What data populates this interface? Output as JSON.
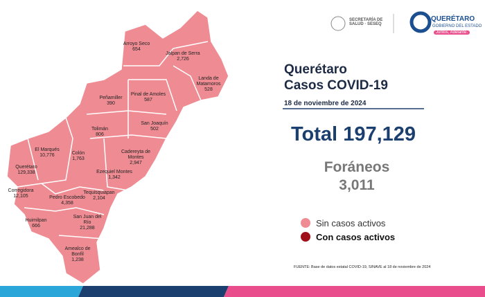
{
  "header": {
    "ministry": "SECRETARÍA DE SALUD · SESEQ",
    "state": "QUERÉTARO",
    "government": "GOBIERNO DEL ESTADO",
    "slogan": "Juntos, Adelante."
  },
  "title": {
    "line1": "Querétaro",
    "line2": "Casos COVID-19",
    "date": "18 de noviembre de 2024"
  },
  "total": {
    "label": "Total",
    "value": "197,129"
  },
  "foreign": {
    "label": "Foráneos",
    "value": "3,011"
  },
  "legend": [
    {
      "label": "Sin casos activos",
      "color": "#ef8c93"
    },
    {
      "label": "Con casos activos",
      "color": "#a0101a"
    }
  ],
  "source": "FUENTE: Base de datos estatal COVID-19, SINAVE al 18 de noviembre de 2024",
  "municipalities": [
    {
      "name": "Arroyo Seco",
      "value": "654"
    },
    {
      "name": "Jalpan de Serra",
      "value": "2,726"
    },
    {
      "name": "Landa de Matamoros",
      "value": "528"
    },
    {
      "name": "Pinal de Amoles",
      "value": "587"
    },
    {
      "name": "Peñamiller",
      "value": "390"
    },
    {
      "name": "San Joaquín",
      "value": "502"
    },
    {
      "name": "Tolimán",
      "value": "806"
    },
    {
      "name": "Cadereyta de Montes",
      "value": "2,947"
    },
    {
      "name": "Colón",
      "value": "1,763"
    },
    {
      "name": "El Marqués",
      "value": "10,776"
    },
    {
      "name": "Querétaro",
      "value": "129,338"
    },
    {
      "name": "Ezequiel Montes",
      "value": "1,342"
    },
    {
      "name": "Tequisquiapan",
      "value": "2,104"
    },
    {
      "name": "Corregidora",
      "value": "12,105"
    },
    {
      "name": "Pedro Escobedo",
      "value": "4,358"
    },
    {
      "name": "Huimilpan",
      "value": "666"
    },
    {
      "name": "San Juan del Río",
      "value": "21,288"
    },
    {
      "name": "Amealco de Bonfil",
      "value": "1,238"
    }
  ]
}
